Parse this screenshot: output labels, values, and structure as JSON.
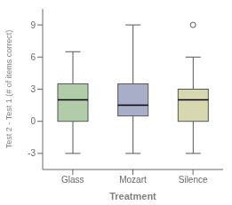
{
  "chart_data": {
    "type": "box",
    "xlabel": "Treatment",
    "ylabel": "Test 2 - Test 1 (# of items correct)",
    "categories": [
      "Glass",
      "Mozart",
      "Silence"
    ],
    "boxes": [
      {
        "min": -3.0,
        "q1": 0.0,
        "median": 2.0,
        "q3": 3.5,
        "max": 6.5,
        "outliers": []
      },
      {
        "min": -3.0,
        "q1": 0.5,
        "median": 1.5,
        "q3": 3.5,
        "max": 9.0,
        "outliers": []
      },
      {
        "min": -3.0,
        "q1": 0.0,
        "median": 2.0,
        "q3": 3.0,
        "max": 6.0,
        "outliers": [
          9.0
        ]
      }
    ],
    "colors": [
      "#b0cca8",
      "#a8aec8",
      "#d8d8b0"
    ],
    "ylim": [
      -4.5,
      10.5
    ],
    "yticks": [
      -3,
      0,
      3,
      6,
      9
    ]
  }
}
